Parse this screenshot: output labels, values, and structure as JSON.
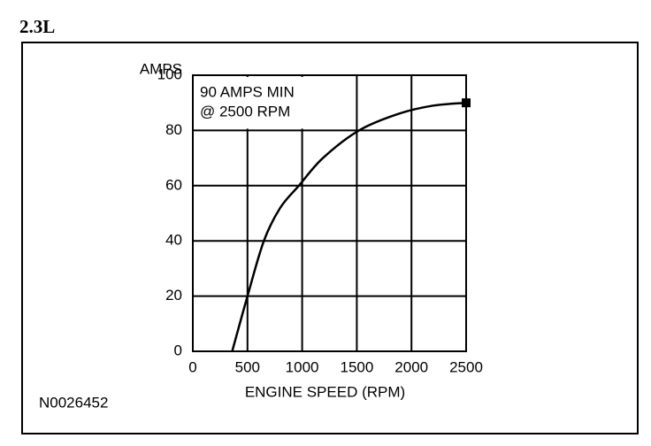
{
  "chart_data": {
    "type": "line",
    "title": "2.3L",
    "y_label": "AMPS",
    "x_label": "ENGINE SPEED (RPM)",
    "annotation": [
      "90 AMPS MIN",
      "@ 2500 RPM"
    ],
    "figure_id": "N0026452",
    "x": [
      360,
      500,
      650,
      800,
      970,
      1190,
      1520,
      1880,
      2200,
      2500
    ],
    "series": [
      {
        "color": "#000000",
        "values": [
          0,
          20,
          40,
          52,
          60,
          70,
          80,
          86,
          89,
          90
        ]
      }
    ],
    "xlim": [
      0,
      2500
    ],
    "ylim": [
      0,
      100
    ],
    "xticks": [
      0,
      500,
      1000,
      1500,
      2000,
      2500
    ],
    "yticks": [
      0,
      20,
      40,
      60,
      80,
      100
    ],
    "grid": true
  }
}
